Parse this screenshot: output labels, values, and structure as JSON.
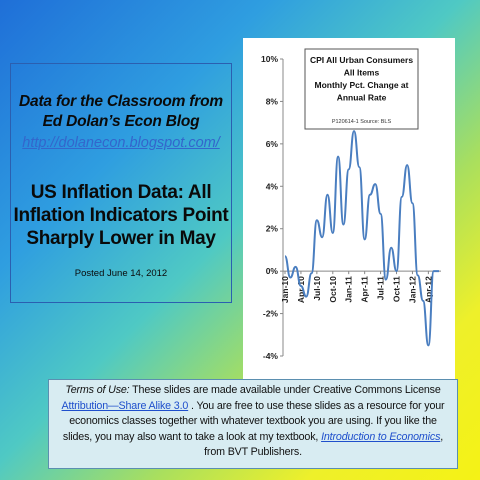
{
  "left": {
    "blog_title_line1": "Data for the Classroom from",
    "blog_title_line2": "Ed Dolan’s Econ Blog",
    "blog_url": "http://dolanecon.blogspot.com/",
    "headline_line1": "US Inflation Data: All",
    "headline_line2": "Inflation Indicators Point",
    "headline_line3": "Sharply Lower in May",
    "posted": "Posted  June 14, 2012"
  },
  "terms": {
    "label": "Terms of Use:",
    "text1": " These slides are made available under Creative Commons License ",
    "license_link": "Attribution—Share Alike 3.0",
    "text2": " . You are free to use these slides as a resource for your economics classes together with whatever textbook you are using. If you like the slides, you may also want to take a look at my textbook, ",
    "book_link": "Introduction to Economics",
    "text3": ", from BVT Publishers."
  },
  "colors": {
    "series_line": "#4a7ec0",
    "axis": "#888888",
    "frame_border": "#2b5fb0",
    "terms_bg": "#d8ecf2"
  },
  "chart_data": {
    "type": "line",
    "title_lines": [
      "CPI All Urban Consumers",
      "All Items",
      "Monthly Pct. Change at",
      "Annual Rate"
    ],
    "source_note": "P120614-1 Source: BLS",
    "ylim": [
      -4,
      10
    ],
    "y_ticks": [
      "10%",
      "8%",
      "6%",
      "4%",
      "2%",
      "0%",
      "-2%",
      "-4%"
    ],
    "y_tick_values": [
      10,
      8,
      6,
      4,
      2,
      0,
      -2,
      -4
    ],
    "x_tick_labels": [
      "Jan-10",
      "Apr-10",
      "Jul-10",
      "Oct-10",
      "Jan-11",
      "Apr-11",
      "Jul-11",
      "Oct-11",
      "Jan-12",
      "Apr-12"
    ],
    "x_tick_indices": [
      0,
      3,
      6,
      9,
      12,
      15,
      18,
      21,
      24,
      27
    ],
    "series": [
      {
        "values": [
          0.7,
          -0.3,
          0.2,
          -0.7,
          -1.2,
          -0.1,
          2.4,
          1.6,
          3.6,
          1.8,
          5.4,
          2.2,
          4.8,
          6.6,
          4.9,
          1.5,
          3.6,
          4.1,
          2.7,
          -0.4,
          1.1,
          0.0,
          3.5,
          5.0,
          3.2,
          -0.2,
          -1.4,
          -3.5,
          0.0,
          0.0
        ]
      }
    ],
    "grid": false
  }
}
